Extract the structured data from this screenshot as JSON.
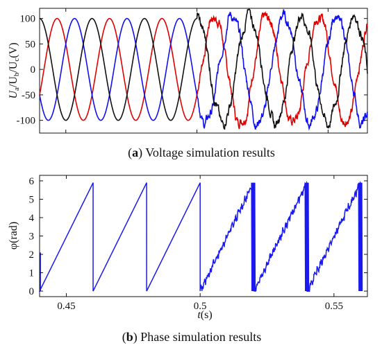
{
  "chart_data": [
    {
      "type": "line",
      "caption_label": "a",
      "caption_text": "Voltage simulation results",
      "ylabel_parts": [
        "U",
        "a",
        "/U",
        "b",
        "/U",
        "c",
        "(V)"
      ],
      "xlim": [
        0.44,
        0.565
      ],
      "ylim": [
        -125,
        120
      ],
      "y_ticks": [
        100,
        50,
        0,
        -50,
        -100
      ],
      "x_tick_positions": [
        0.45,
        0.5,
        0.55
      ],
      "x_tick_labels_visible": false,
      "frequency_hz": 50,
      "disturbance_start": 0.5,
      "series": [
        {
          "color": "#e00000",
          "amplitude": 100,
          "phase_deg": -120
        },
        {
          "color": "#1010ee",
          "amplitude": 100,
          "phase_deg": 120
        },
        {
          "color": "#111111",
          "amplitude": 100,
          "phase_deg": 0
        }
      ]
    },
    {
      "type": "line",
      "caption_label": "b",
      "caption_text": "Phase simulation results",
      "ylabel": "φ(rad)",
      "xlabel_italic": "t",
      "xlabel_rest": "(s)",
      "xlim": [
        0.44,
        0.5625
      ],
      "ylim": [
        -0.3,
        6.3
      ],
      "y_ticks": [
        0,
        1,
        2,
        3,
        4,
        5,
        6
      ],
      "x_ticks": [
        0.45,
        0.5,
        0.55
      ],
      "x_tick_labels": [
        "0.45",
        "0.5",
        "0.55"
      ],
      "series": [
        {
          "color": "#1a1aee",
          "ramp_max": 5.9,
          "wrap_times": [
            0.44,
            0.46,
            0.48,
            0.5,
            0.52,
            0.54,
            0.56
          ]
        }
      ]
    }
  ]
}
